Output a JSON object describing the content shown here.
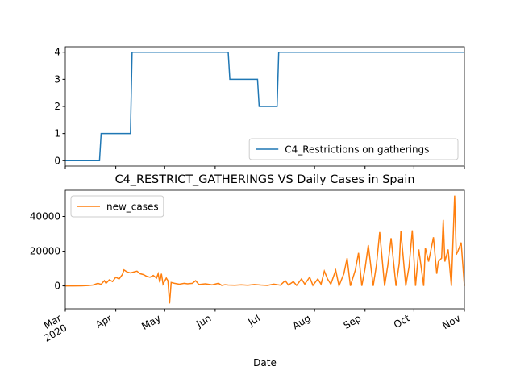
{
  "chart_data": [
    {
      "type": "line",
      "x": [
        0,
        21,
        22,
        40,
        41,
        100,
        101,
        118,
        119,
        130,
        131,
        245
      ],
      "series": [
        {
          "name": "C4_Restrictions on gatherings",
          "color": "#1f77b4",
          "values": [
            0,
            0,
            1,
            1,
            4,
            4,
            3,
            3,
            2,
            2,
            4,
            4
          ]
        }
      ],
      "xlim": [
        0,
        245
      ],
      "xticks": [
        0,
        31,
        61,
        92,
        122,
        153,
        184,
        214,
        245
      ],
      "ylim": [
        -0.2,
        4.2
      ],
      "yticks": [
        0,
        1,
        2,
        3,
        4
      ],
      "legend": "lower right"
    },
    {
      "type": "line",
      "title": "C4_RESTRICT_GATHERINGS VS Daily Cases in Spain",
      "xlabel": "Date",
      "x": [
        0,
        5,
        10,
        14,
        17,
        20,
        22,
        24,
        25,
        27,
        29,
        31,
        33,
        35,
        36,
        38,
        40,
        42,
        44,
        46,
        48,
        50,
        52,
        54,
        56,
        57,
        58,
        59,
        60,
        62,
        63,
        64,
        65,
        67,
        70,
        73,
        75,
        78,
        80,
        82,
        86,
        90,
        94,
        96,
        98,
        100,
        104,
        108,
        112,
        116,
        120,
        124,
        128,
        132,
        135,
        137,
        140,
        142,
        145,
        147,
        150,
        152,
        155,
        157,
        159,
        161,
        163,
        166,
        168,
        171,
        173,
        175,
        178,
        180,
        182,
        184,
        186,
        189,
        191,
        193,
        196,
        198,
        200,
        203,
        205,
        206,
        209,
        211,
        213,
        215,
        217,
        220,
        221,
        223,
        226,
        228,
        229,
        231,
        232,
        233,
        235,
        237,
        239,
        240,
        241,
        243,
        245
      ],
      "series": [
        {
          "name": "new_cases",
          "color": "#ff7f0e",
          "values": [
            0,
            0,
            50,
            200,
            500,
            1500,
            900,
            3000,
            1500,
            3500,
            2500,
            5000,
            4000,
            6500,
            9200,
            8000,
            7500,
            8000,
            8500,
            7000,
            6500,
            5500,
            5000,
            6000,
            4500,
            7000,
            2000,
            7000,
            1000,
            4500,
            3000,
            -10100,
            2000,
            1500,
            1000,
            1500,
            1200,
            1500,
            3000,
            800,
            1200,
            600,
            1500,
            300,
            700,
            500,
            400,
            600,
            400,
            800,
            500,
            300,
            1000,
            400,
            3000,
            500,
            2500,
            300,
            4000,
            1000,
            5000,
            300,
            4000,
            1000,
            8500,
            4000,
            1000,
            9000,
            0,
            7000,
            16000,
            0,
            9000,
            19000,
            0,
            10000,
            23500,
            0,
            12000,
            31000,
            0,
            12000,
            27500,
            0,
            13000,
            31500,
            0,
            11000,
            32000,
            0,
            21000,
            0,
            22000,
            14000,
            28000,
            7000,
            14000,
            16000,
            38000,
            14000,
            21000,
            0,
            52000,
            18000,
            20000,
            25000,
            0
          ]
        }
      ],
      "xlim": [
        0,
        245
      ],
      "xticks": [
        {
          "value": 0,
          "label": "Mar\n2020"
        },
        {
          "value": 31,
          "label": "Apr"
        },
        {
          "value": 61,
          "label": "May"
        },
        {
          "value": 92,
          "label": "Jun"
        },
        {
          "value": 122,
          "label": "Jul"
        },
        {
          "value": 153,
          "label": "Aug"
        },
        {
          "value": 184,
          "label": "Sep"
        },
        {
          "value": 214,
          "label": "Oct"
        },
        {
          "value": 245,
          "label": "Nov"
        }
      ],
      "ylim": [
        -13200,
        55100
      ],
      "yticks": [
        0,
        20000,
        40000
      ],
      "legend": "upper left"
    }
  ]
}
